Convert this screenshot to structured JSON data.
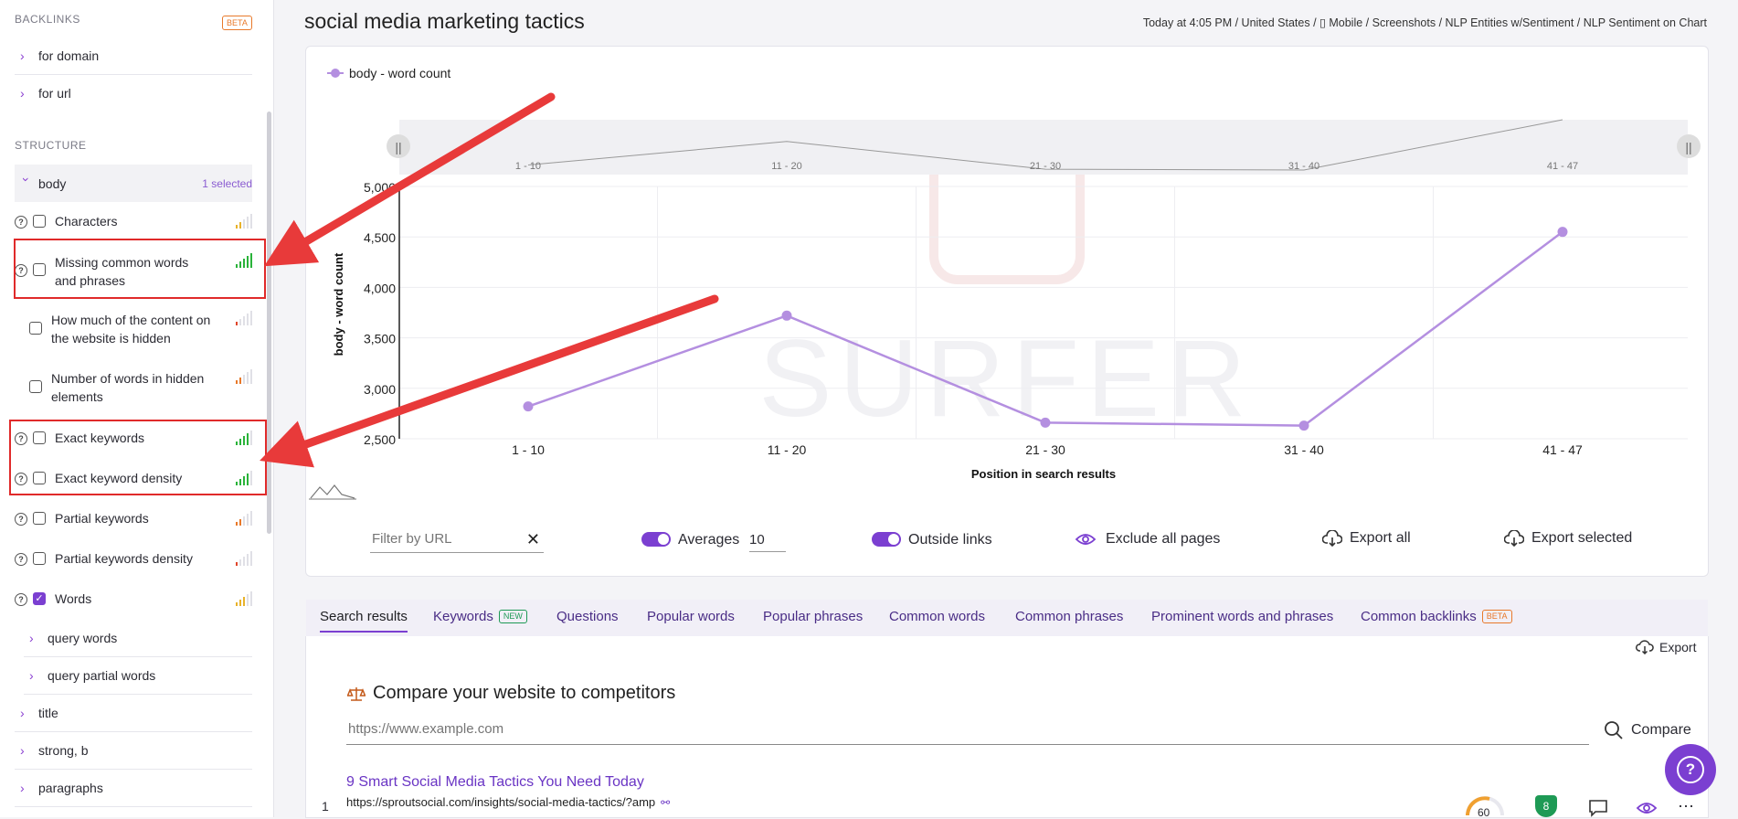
{
  "sidebar": {
    "backlinks_header": "BACKLINKS",
    "backlinks_badge": "BETA",
    "backlinks": [
      {
        "label": "for domain"
      },
      {
        "label": "for url"
      }
    ],
    "structure_header": "STRUCTURE",
    "body_label": "body",
    "body_selected": "1 selected",
    "options": [
      {
        "label": "Characters",
        "checked": false,
        "help": true,
        "signal": "yellow"
      },
      {
        "label": "Missing common words and phrases",
        "checked": false,
        "help": true,
        "signal": "green"
      },
      {
        "label": "How much of the content on the website is hidden",
        "checked": false,
        "help": false,
        "signal": "red"
      },
      {
        "label": "Number of words in hidden elements",
        "checked": false,
        "help": false,
        "signal": "orange"
      },
      {
        "label": "Exact keywords",
        "checked": false,
        "help": true,
        "signal": "green"
      },
      {
        "label": "Exact keyword density",
        "checked": false,
        "help": true,
        "signal": "green"
      },
      {
        "label": "Partial keywords",
        "checked": false,
        "help": true,
        "signal": "orange"
      },
      {
        "label": "Partial keywords density",
        "checked": false,
        "help": true,
        "signal": "red"
      },
      {
        "label": "Words",
        "checked": true,
        "help": true,
        "signal": "yellow"
      }
    ],
    "sub_items": [
      {
        "label": "query words"
      },
      {
        "label": "query partial words"
      }
    ],
    "structure_items": [
      {
        "label": "title"
      },
      {
        "label": "strong, b"
      },
      {
        "label": "paragraphs"
      }
    ]
  },
  "header": {
    "title": "social media marketing tactics",
    "breadcrumb": "Today at 4:05 PM / United States / ▯ Mobile / Screenshots / NLP Entities w/Sentiment / NLP Sentiment on Chart"
  },
  "chart_data": {
    "type": "line",
    "legend": "body - word count",
    "categories": [
      "1 - 10",
      "11 - 20",
      "21 - 30",
      "31 - 40",
      "41 - 47"
    ],
    "series": [
      {
        "name": "body - word count",
        "values": [
          2820,
          3720,
          2660,
          2630,
          4550
        ]
      }
    ],
    "xlabel": "Position in search results",
    "ylabel": "body - word count",
    "ylim": [
      2500,
      5000
    ],
    "yticks": [
      "5,000",
      "4,500",
      "4,000",
      "3,500",
      "3,000",
      "2,500"
    ],
    "watermark": "SURFER",
    "color": "#b48fe0"
  },
  "controls": {
    "filter_placeholder": "Filter by URL",
    "averages_label": "Averages",
    "averages_value": "10",
    "outside_links_label": "Outside links",
    "exclude_label": "Exclude all pages",
    "export_all": "Export all",
    "export_selected": "Export selected"
  },
  "tabs": [
    {
      "label": "Search results",
      "active": true
    },
    {
      "label": "Keywords",
      "badge": "NEW"
    },
    {
      "label": "Questions"
    },
    {
      "label": "Popular words"
    },
    {
      "label": "Popular phrases"
    },
    {
      "label": "Common words"
    },
    {
      "label": "Common phrases"
    },
    {
      "label": "Prominent words and phrases"
    },
    {
      "label": "Common backlinks",
      "badge": "BETA"
    }
  ],
  "results": {
    "export_label": "Export",
    "compare_title": "Compare your website to competitors",
    "compare_placeholder": "https://www.example.com",
    "compare_button": "Compare",
    "rows": [
      {
        "rank": "1",
        "title": "9 Smart Social Media Tactics You Need Today",
        "url": "https://sproutsocial.com/insights/social-media-tactics/?amp",
        "score": "60",
        "badge": "8"
      }
    ]
  }
}
